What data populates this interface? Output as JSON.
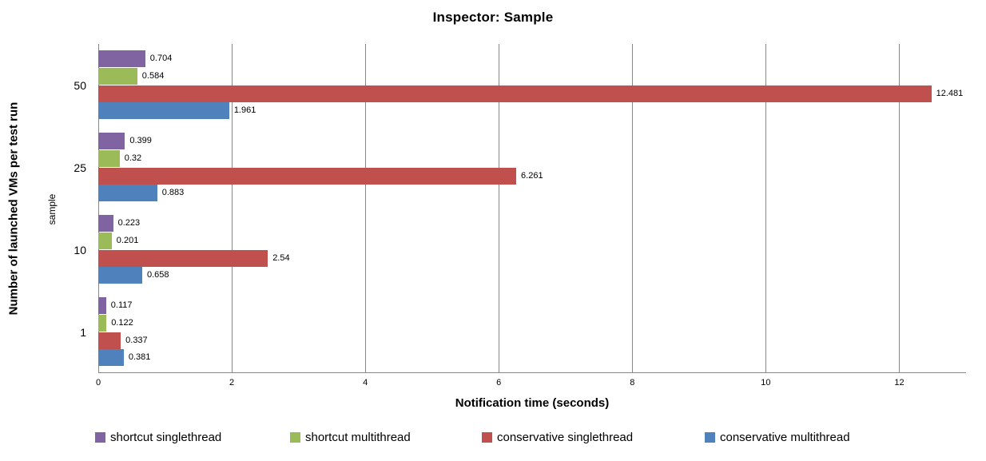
{
  "chart_data": {
    "type": "bar",
    "orientation": "horizontal",
    "title": "Inspector: Sample",
    "xlabel": "Notification time (seconds)",
    "ylabel": "Number of launched VMs per test run",
    "ylabel_secondary": "sample",
    "categories": [
      "50",
      "25",
      "10",
      "1"
    ],
    "series": [
      {
        "name": "shortcut singlethread",
        "color": "#8064A2",
        "values": [
          0.704,
          0.399,
          0.223,
          0.117
        ]
      },
      {
        "name": "shortcut multithread",
        "color": "#9BBB59",
        "values": [
          0.584,
          0.32,
          0.201,
          0.122
        ]
      },
      {
        "name": "conservative singlethread",
        "color": "#C0504D",
        "values": [
          12.481,
          6.261,
          2.54,
          0.337
        ]
      },
      {
        "name": "conservative multithread",
        "color": "#4F81BD",
        "values": [
          1.961,
          0.883,
          0.658,
          0.381
        ]
      }
    ],
    "xticks": [
      0,
      2,
      4,
      6,
      8,
      10,
      12
    ],
    "xlim": [
      0,
      13
    ],
    "grid": true,
    "gridline_color": "#878787",
    "legend_position": "bottom",
    "legend": [
      "shortcut singlethread",
      "shortcut multithread",
      "conservative singlethread",
      "conservative multithread"
    ]
  }
}
